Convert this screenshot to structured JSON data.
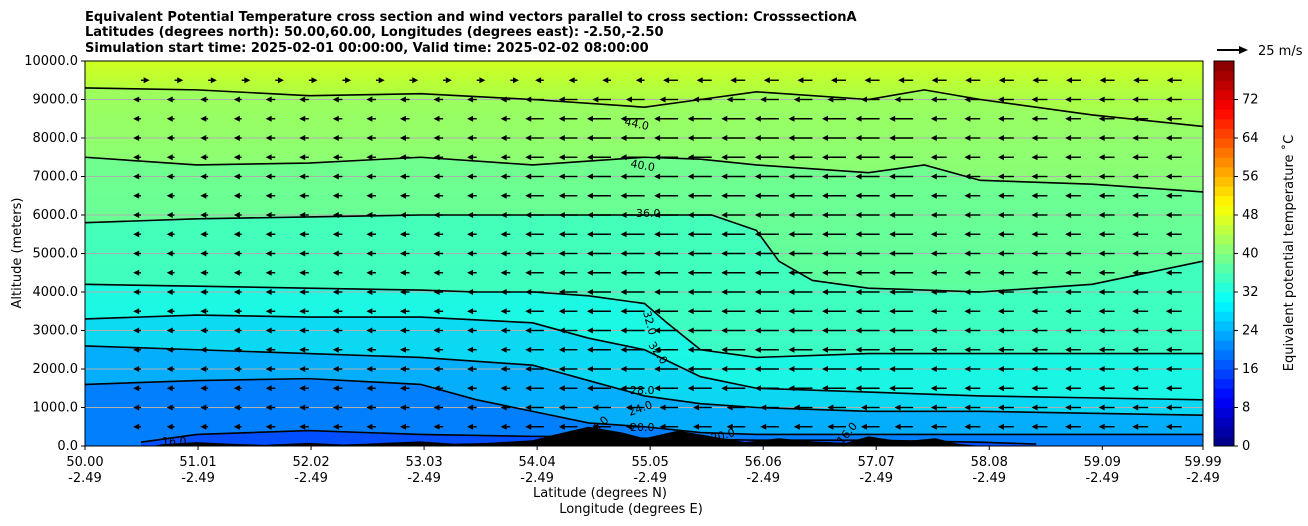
{
  "chart_data": {
    "type": "heatmap",
    "title_lines": [
      "Equivalent Potential Temperature cross section and wind vectors parallel to cross section: CrosssectionA",
      "Latitudes (degrees north): 50.00,60.00, Longitudes (degrees east): -2.50,-2.50",
      "Simulation start time: 2025-02-01 00:00:00, Valid time: 2025-02-02 08:00:00"
    ],
    "xlabel": "Latitude (degrees N)",
    "xlabel2": "Longitude (degrees E)",
    "ylabel": "Altitude (meters)",
    "x_ticks_lat": [
      "50.00",
      "51.01",
      "52.02",
      "53.03",
      "54.04",
      "55.05",
      "56.06",
      "57.07",
      "58.08",
      "59.09",
      "59.99"
    ],
    "x_ticks_lon": [
      "-2.49",
      "-2.49",
      "-2.49",
      "-2.49",
      "-2.49",
      "-2.49",
      "-2.49",
      "-2.49",
      "-2.49",
      "-2.49",
      "-2.49"
    ],
    "xlim": [
      50.0,
      59.99
    ],
    "ylim": [
      0,
      10000
    ],
    "y_ticks": [
      "0.0",
      "1000.0",
      "2000.0",
      "3000.0",
      "4000.0",
      "5000.0",
      "6000.0",
      "7000.0",
      "8000.0",
      "9000.0",
      "10000.0"
    ],
    "y_tick_values": [
      0,
      1000,
      2000,
      3000,
      4000,
      5000,
      6000,
      7000,
      8000,
      9000,
      10000
    ],
    "grid": true,
    "colorbar": {
      "label": "Equivalent potential temperature ˚C",
      "ticks": [
        "0",
        "8",
        "16",
        "24",
        "32",
        "40",
        "48",
        "56",
        "64",
        "72"
      ],
      "tick_values": [
        0,
        8,
        16,
        24,
        32,
        40,
        48,
        56,
        64,
        72
      ],
      "range": [
        0,
        80
      ],
      "colormap": "jet"
    },
    "quiver_key": {
      "label": "25 m/s",
      "speed": 25
    },
    "contour_labels": [
      "44.0",
      "40.0",
      "36.0",
      "32.0",
      "32.0",
      "28.0",
      "24.0",
      "20.0",
      "20.0",
      "16.0",
      "16.0",
      "16.0"
    ],
    "contours": [
      {
        "level": 44,
        "x": [
          50.0,
          51.0,
          52.0,
          53.0,
          54.0,
          55.0,
          55.5,
          56.0,
          57.0,
          57.5,
          58.0,
          59.0,
          59.99
        ],
        "y": [
          9300,
          9250,
          9100,
          9150,
          9000,
          8800,
          9000,
          9200,
          9000,
          9250,
          9000,
          8600,
          8300
        ]
      },
      {
        "level": 40,
        "x": [
          50.0,
          51.0,
          52.0,
          53.0,
          54.0,
          55.0,
          55.5,
          56.0,
          57.0,
          57.5,
          58.0,
          59.0,
          59.99
        ],
        "y": [
          7500,
          7300,
          7350,
          7500,
          7300,
          7500,
          7450,
          7300,
          7100,
          7300,
          6900,
          6800,
          6600
        ]
      },
      {
        "level": 36,
        "x": [
          50.0,
          51.0,
          52.0,
          53.0,
          54.0,
          55.0,
          55.6,
          56.0,
          56.2,
          56.5,
          57.0,
          58.0,
          59.0,
          59.99
        ],
        "y": [
          5800,
          5900,
          5950,
          6000,
          6000,
          6000,
          6000,
          5600,
          4800,
          4300,
          4100,
          4000,
          4200,
          4800
        ]
      },
      {
        "level": 32,
        "x": [
          50.0,
          51.0,
          52.0,
          53.0,
          53.5,
          54.0,
          54.5,
          55.0,
          55.2,
          55.5,
          56.0,
          57.0,
          58.0,
          59.0,
          59.99
        ],
        "y": [
          4200,
          4150,
          4100,
          4050,
          4000,
          4000,
          3900,
          3700,
          3200,
          2500,
          2300,
          2400,
          2400,
          2400,
          2400
        ]
      },
      {
        "level": 28,
        "x": [
          50.0,
          51.0,
          52.0,
          53.0,
          54.0,
          54.5,
          55.0,
          55.5,
          56.0,
          57.0,
          58.0,
          59.0,
          59.99
        ],
        "y": [
          3300,
          3400,
          3350,
          3350,
          3200,
          2800,
          2500,
          1800,
          1500,
          1400,
          1300,
          1250,
          1200
        ]
      },
      {
        "level": 24,
        "x": [
          50.0,
          51.0,
          52.0,
          53.0,
          54.0,
          54.5,
          55.0,
          55.5,
          56.0,
          57.0,
          58.0,
          59.0,
          59.99
        ],
        "y": [
          2600,
          2500,
          2400,
          2300,
          2100,
          1700,
          1300,
          1100,
          1000,
          900,
          900,
          850,
          800
        ]
      },
      {
        "level": 20,
        "x": [
          50.0,
          51.0,
          52.0,
          53.0,
          53.5,
          54.0,
          54.5,
          55.0,
          55.5,
          56.0,
          57.0,
          58.0,
          59.0,
          59.99
        ],
        "y": [
          1600,
          1700,
          1750,
          1600,
          1200,
          900,
          600,
          500,
          350,
          300,
          300,
          300,
          300,
          300
        ]
      },
      {
        "level": 16,
        "x": [
          50.5,
          51.0,
          52.0,
          53.0,
          54.0,
          54.5,
          55.0,
          56.0,
          57.0,
          58.0,
          58.5
        ],
        "y": [
          100,
          300,
          400,
          300,
          250,
          250,
          200,
          150,
          150,
          100,
          50
        ]
      }
    ],
    "terrain": {
      "x": [
        50.0,
        50.6,
        50.7,
        51.0,
        51.3,
        51.6,
        52.0,
        52.3,
        52.5,
        53.0,
        53.3,
        53.6,
        54.0,
        54.2,
        54.5,
        54.8,
        55.0,
        55.3,
        55.6,
        55.9,
        56.2,
        56.5,
        56.8,
        57.0,
        57.3,
        57.6,
        57.8,
        58.0,
        59.99
      ],
      "y": [
        0,
        0,
        50,
        100,
        60,
        30,
        80,
        40,
        60,
        120,
        60,
        80,
        150,
        300,
        500,
        350,
        200,
        400,
        250,
        100,
        200,
        120,
        80,
        250,
        120,
        200,
        60,
        0,
        0
      ]
    },
    "wind_u_note": "arrows point toward lower latitude (southward flow) in upper/middle levels"
  }
}
